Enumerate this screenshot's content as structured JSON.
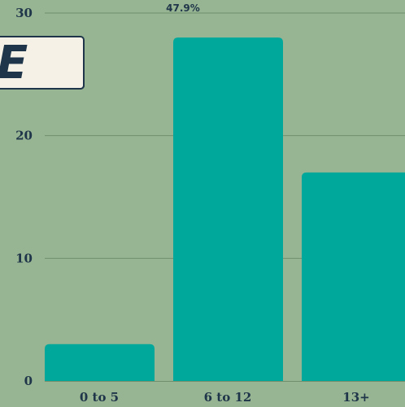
{
  "chart_data": {
    "type": "bar",
    "categories": [
      "0 to 5",
      "6 to 12",
      "13+"
    ],
    "values": [
      3,
      28,
      17
    ],
    "ylim": [
      0,
      30
    ],
    "yticks": [
      0,
      10,
      20,
      30
    ],
    "grid": true,
    "bar_color": "#00a89c",
    "data_labels": [
      {
        "category": "6 to 12",
        "text": "47.9%"
      }
    ]
  },
  "badge": {
    "text": "E",
    "fill_color": "#f6f1e6",
    "shadow_color": "#e59a8c"
  },
  "colors": {
    "background": "#97b593",
    "text": "#1f3549",
    "grid": "#6f8f6d"
  }
}
